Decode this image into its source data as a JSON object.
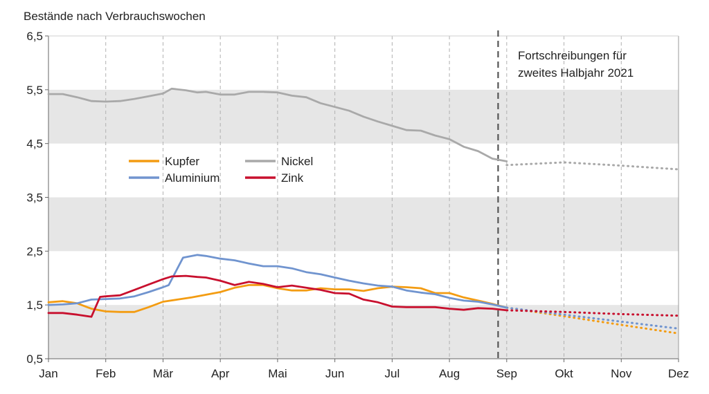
{
  "chart_data": {
    "type": "line",
    "title": "",
    "ylabel": "Bestände nach Verbrauchswochen",
    "xlabel": "",
    "ylim": [
      0.5,
      6.5
    ],
    "yticks": [
      0.5,
      1.5,
      2.5,
      3.5,
      4.5,
      5.5,
      6.5
    ],
    "ytick_labels": [
      "0,5",
      "1,5",
      "2,5",
      "3,5",
      "4,5",
      "5,5",
      "6,5"
    ],
    "months": [
      "Jan",
      "Feb",
      "Mär",
      "Apr",
      "Mai",
      "Jun",
      "Jul",
      "Aug",
      "Sep",
      "Okt",
      "Nov",
      "Dez"
    ],
    "x_unit": "month index (0 = Jan, 11 = Dez)",
    "shaded_bands": [
      [
        0.5,
        1.5
      ],
      [
        2.5,
        3.5
      ],
      [
        4.5,
        5.5
      ]
    ],
    "forecast_start_x": 7.85,
    "annotation": [
      "Fortschreibungen für",
      "zweites Halbjahr 2021"
    ],
    "series": [
      {
        "name": "Kupfer",
        "color": "#f39c12",
        "x": [
          0,
          0.25,
          0.5,
          0.75,
          1,
          1.25,
          1.5,
          1.75,
          2,
          2.25,
          2.5,
          2.75,
          3,
          3.25,
          3.5,
          3.75,
          4,
          4.25,
          4.5,
          4.75,
          5,
          5.25,
          5.5,
          5.75,
          6,
          6.25,
          6.5,
          6.75,
          7,
          7.25,
          7.5,
          7.75,
          8
        ],
        "values": [
          1.55,
          1.57,
          1.53,
          1.43,
          1.38,
          1.37,
          1.37,
          1.46,
          1.56,
          1.6,
          1.64,
          1.69,
          1.74,
          1.82,
          1.87,
          1.87,
          1.81,
          1.77,
          1.77,
          1.81,
          1.79,
          1.79,
          1.76,
          1.81,
          1.84,
          1.83,
          1.81,
          1.72,
          1.72,
          1.64,
          1.58,
          1.52,
          1.45
        ],
        "forecast_x": [
          8,
          9,
          10,
          11
        ],
        "forecast": [
          1.45,
          1.29,
          1.13,
          0.97
        ]
      },
      {
        "name": "Aluminium",
        "color": "#7094cf",
        "x": [
          0,
          0.25,
          0.5,
          0.75,
          1,
          1.25,
          1.5,
          1.75,
          2,
          2.1,
          2.35,
          2.6,
          2.75,
          3,
          3.25,
          3.5,
          3.75,
          4,
          4.25,
          4.5,
          4.75,
          5,
          5.25,
          5.5,
          5.75,
          6,
          6.25,
          6.5,
          6.75,
          7,
          7.25,
          7.5,
          7.75,
          8
        ],
        "values": [
          1.5,
          1.51,
          1.53,
          1.6,
          1.61,
          1.62,
          1.66,
          1.74,
          1.83,
          1.87,
          2.38,
          2.43,
          2.41,
          2.36,
          2.33,
          2.27,
          2.22,
          2.22,
          2.18,
          2.11,
          2.07,
          2.01,
          1.95,
          1.9,
          1.86,
          1.84,
          1.77,
          1.73,
          1.7,
          1.63,
          1.58,
          1.56,
          1.51,
          1.45
        ],
        "forecast_x": [
          8,
          9,
          10,
          11
        ],
        "forecast": [
          1.45,
          1.32,
          1.19,
          1.06
        ]
      },
      {
        "name": "Nickel",
        "color": "#a9a9a9",
        "x": [
          0,
          0.25,
          0.5,
          0.75,
          1,
          1.25,
          1.5,
          1.75,
          2,
          2.15,
          2.4,
          2.6,
          2.75,
          3,
          3.25,
          3.5,
          3.75,
          4,
          4.25,
          4.5,
          4.75,
          5,
          5.25,
          5.5,
          5.75,
          6,
          6.25,
          6.5,
          6.75,
          7,
          7.25,
          7.5,
          7.75,
          8
        ],
        "values": [
          5.42,
          5.42,
          5.36,
          5.29,
          5.28,
          5.29,
          5.33,
          5.38,
          5.43,
          5.52,
          5.49,
          5.45,
          5.46,
          5.41,
          5.41,
          5.46,
          5.46,
          5.45,
          5.39,
          5.36,
          5.25,
          5.18,
          5.11,
          5.0,
          4.91,
          4.83,
          4.75,
          4.74,
          4.65,
          4.58,
          4.44,
          4.36,
          4.22,
          4.17
        ],
        "forecast_x": [
          8,
          9,
          10,
          11
        ],
        "forecast": [
          4.1,
          4.15,
          4.09,
          4.02
        ]
      },
      {
        "name": "Zink",
        "color": "#c8102e",
        "x": [
          0,
          0.25,
          0.5,
          0.75,
          0.9,
          1,
          1.25,
          1.5,
          1.75,
          2,
          2.15,
          2.4,
          2.6,
          2.75,
          3,
          3.25,
          3.5,
          3.75,
          4,
          4.25,
          4.5,
          4.75,
          5,
          5.25,
          5.5,
          5.75,
          6,
          6.25,
          6.5,
          6.75,
          7,
          7.25,
          7.5,
          7.75,
          8
        ],
        "values": [
          1.35,
          1.35,
          1.32,
          1.28,
          1.65,
          1.66,
          1.68,
          1.78,
          1.88,
          1.98,
          2.03,
          2.04,
          2.02,
          2.01,
          1.95,
          1.87,
          1.93,
          1.89,
          1.83,
          1.86,
          1.82,
          1.78,
          1.72,
          1.71,
          1.6,
          1.55,
          1.47,
          1.46,
          1.46,
          1.46,
          1.43,
          1.41,
          1.44,
          1.43,
          1.4
        ],
        "forecast_x": [
          8,
          9,
          10,
          11
        ],
        "forecast": [
          1.4,
          1.37,
          1.33,
          1.3
        ]
      }
    ]
  }
}
